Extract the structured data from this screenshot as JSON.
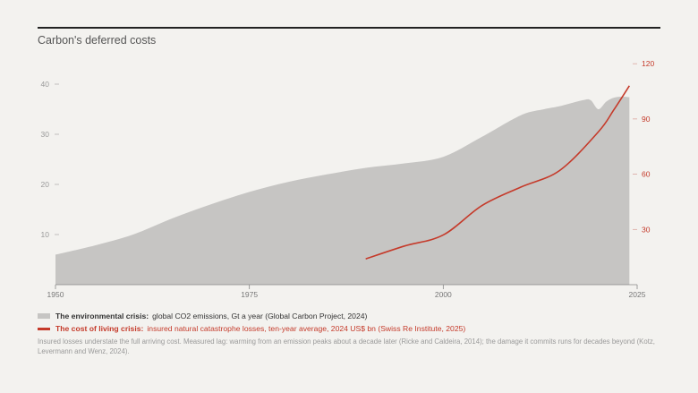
{
  "title": "Carbon's deferred costs",
  "chart_data": {
    "type": "area",
    "x_ticks": [
      1950,
      1975,
      2000,
      2025
    ],
    "y_left_ticks": [
      10,
      20,
      30,
      40
    ],
    "y_right_ticks": [
      30,
      60,
      90,
      120
    ],
    "x_range": [
      1950,
      2025
    ],
    "y_left_range": [
      0,
      45
    ],
    "y_right_range": [
      0,
      125
    ],
    "series": [
      {
        "name": "The environmental crisis:",
        "axis": "left",
        "color": "#c6c5c3",
        "x": [
          1950,
          1955,
          1960,
          1965,
          1970,
          1975,
          1980,
          1985,
          1990,
          1995,
          2000,
          2005,
          2010,
          2013,
          2015,
          2018,
          2019,
          2020,
          2021,
          2022,
          2023,
          2024
        ],
        "y": [
          6,
          7.8,
          10,
          13.2,
          16,
          18.5,
          20.5,
          22,
          23.3,
          24.2,
          25.5,
          29.5,
          33.8,
          35,
          35.6,
          36.8,
          36.8,
          35,
          36.5,
          37.3,
          37.5,
          37.4
        ]
      },
      {
        "name": "The cost of living crisis:",
        "axis": "right",
        "color": "#c53a2a",
        "x": [
          1990,
          1995,
          2000,
          2005,
          2010,
          2015,
          2020,
          2022,
          2024
        ],
        "y": [
          14,
          21,
          27,
          43,
          53,
          62,
          83,
          95,
          108
        ]
      }
    ],
    "grid": false
  },
  "legend": {
    "env_bold": "The environmental crisis:",
    "env_text": "global CO2 emissions, Gt a year (Global Carbon Project, 2024)",
    "col_bold": "The cost of living crisis:",
    "col_text": "insured natural catastrophe losses, ten-year average, 2024 US$ bn (Swiss Re Institute, 2025)"
  },
  "note": "Insured losses understate the full arriving cost. Measured lag: warming from an emission peaks about a decade later (Ricke and Caldeira, 2014); the damage it commits runs for decades beyond (Kotz, Levermann and Wenz, 2024).",
  "colors": {
    "area": "#c6c5c3",
    "line": "#c53a2a",
    "axis_text": "#9a9a9a"
  }
}
